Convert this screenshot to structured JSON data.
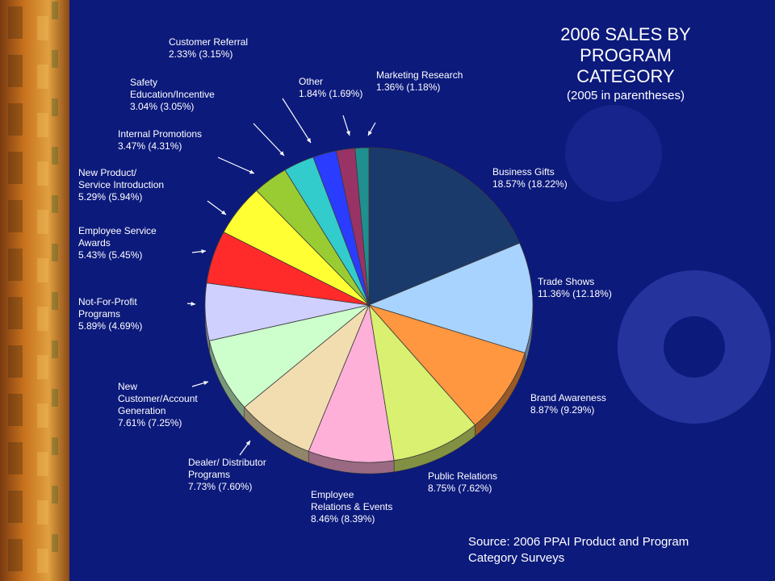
{
  "chart_data": {
    "type": "pie",
    "title": "2006 SALES BY\nPROGRAM\nCATEGORY",
    "subtitle": "(2005 in parentheses)",
    "source": "Source: 2006 PPAI Product and Program Category Surveys",
    "slices": [
      {
        "label": "Business Gifts",
        "value": 18.57,
        "prev": 18.22,
        "text": "Business Gifts\n18.57% (18.22%)",
        "color": "#1a3a6b"
      },
      {
        "label": "Trade Shows",
        "value": 11.36,
        "prev": 12.18,
        "text": "Trade Shows\n11.36% (12.18%)",
        "color": "#a8d3ff"
      },
      {
        "label": "Brand Awareness",
        "value": 8.87,
        "prev": 9.29,
        "text": "Brand Awareness\n8.87% (9.29%)",
        "color": "#ff9640"
      },
      {
        "label": "Public Relations",
        "value": 8.75,
        "prev": 7.62,
        "text": "Public Relations\n8.75% (7.62%)",
        "color": "#d9f070"
      },
      {
        "label": "Employee Relations & Events",
        "value": 8.46,
        "prev": 8.39,
        "text": "Employee\nRelations & Events\n8.46% (8.39%)",
        "color": "#ffb0d8"
      },
      {
        "label": "Dealer/ Distributor Programs",
        "value": 7.73,
        "prev": 7.6,
        "text": "Dealer/ Distributor\nPrograms\n7.73% (7.60%)",
        "color": "#f2ddb0"
      },
      {
        "label": "New Customer/Account Generation",
        "value": 7.61,
        "prev": 7.25,
        "text": "New\nCustomer/Account\nGeneration\n7.61% (7.25%)",
        "color": "#ccffcc"
      },
      {
        "label": "Not-For-Profit Programs",
        "value": 5.89,
        "prev": 4.69,
        "text": "Not-For-Profit\nPrograms\n5.89% (4.69%)",
        "color": "#d0d0ff"
      },
      {
        "label": "Employee Service Awards",
        "value": 5.43,
        "prev": 5.45,
        "text": "Employee Service\nAwards\n5.43% (5.45%)",
        "color": "#ff2a2a"
      },
      {
        "label": "New Product/ Service Introduction",
        "value": 5.29,
        "prev": 5.94,
        "text": "New Product/\nService Introduction\n5.29% (5.94%)",
        "color": "#ffff33"
      },
      {
        "label": "Internal Promotions",
        "value": 3.47,
        "prev": 4.31,
        "text": "Internal Promotions\n3.47% (4.31%)",
        "color": "#99cc33"
      },
      {
        "label": "Safety Education/Incentive",
        "value": 3.04,
        "prev": 3.05,
        "text": "Safety\nEducation/Incentive\n3.04% (3.05%)",
        "color": "#33cccc"
      },
      {
        "label": "Customer Referral",
        "value": 2.33,
        "prev": 3.15,
        "text": "Customer Referral\n2.33% (3.15%)",
        "color": "#2a3cff"
      },
      {
        "label": "Other",
        "value": 1.84,
        "prev": 1.69,
        "text": "Other\n1.84% (1.69%)",
        "color": "#993366"
      },
      {
        "label": "Marketing Research",
        "value": 1.36,
        "prev": 1.18,
        "text": "Marketing Research\n1.36% (1.18%)",
        "color": "#1f8f8f"
      }
    ]
  }
}
